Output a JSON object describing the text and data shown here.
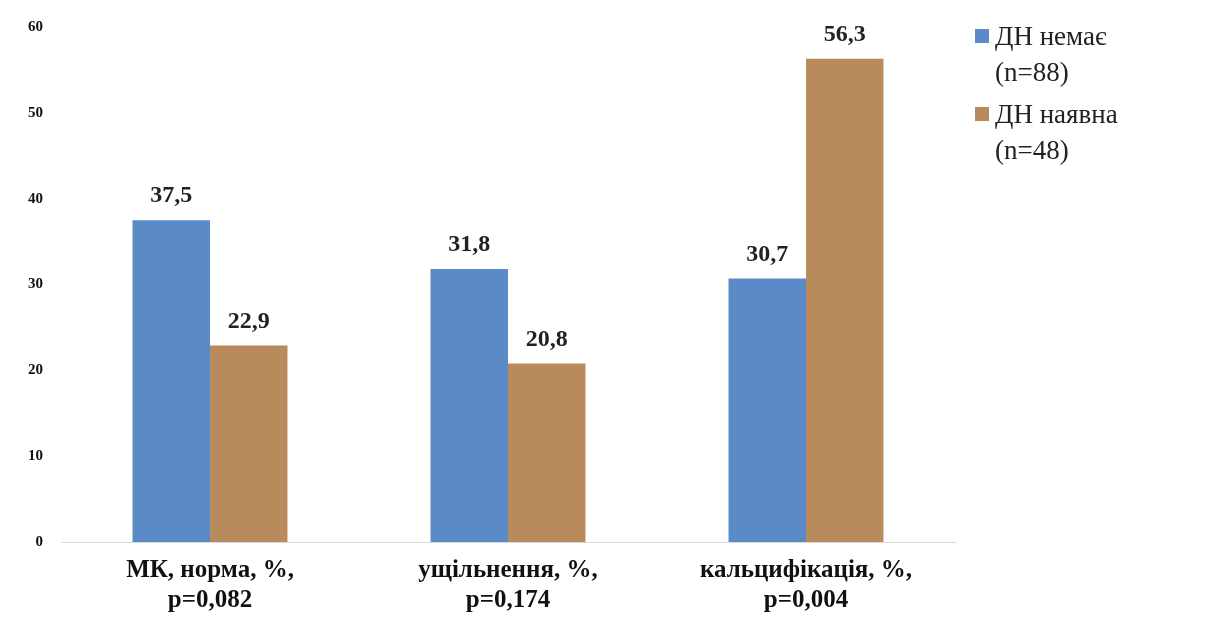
{
  "chart_data": {
    "type": "bar",
    "categories": [
      "МК, норма, %,\np=0,082",
      "ущільнення, %,\np=0,174",
      "кальцифікація, %,\np=0,004"
    ],
    "series": [
      {
        "name": "ДН немає (n=88)",
        "color": "#5b8bc6",
        "values": [
          37.5,
          31.8,
          30.7
        ],
        "value_labels": [
          "37,5",
          "31,8",
          "30,7"
        ]
      },
      {
        "name": "ДН наявна (n=48)",
        "color": "#b98a5c",
        "values": [
          22.9,
          20.8,
          56.3
        ],
        "value_labels": [
          "22,9",
          "20,8",
          "56,3"
        ]
      }
    ],
    "ylim": [
      0,
      60
    ],
    "yticks": [
      0,
      10,
      20,
      30,
      40,
      50,
      60
    ],
    "grid": false,
    "legend": "top right"
  }
}
